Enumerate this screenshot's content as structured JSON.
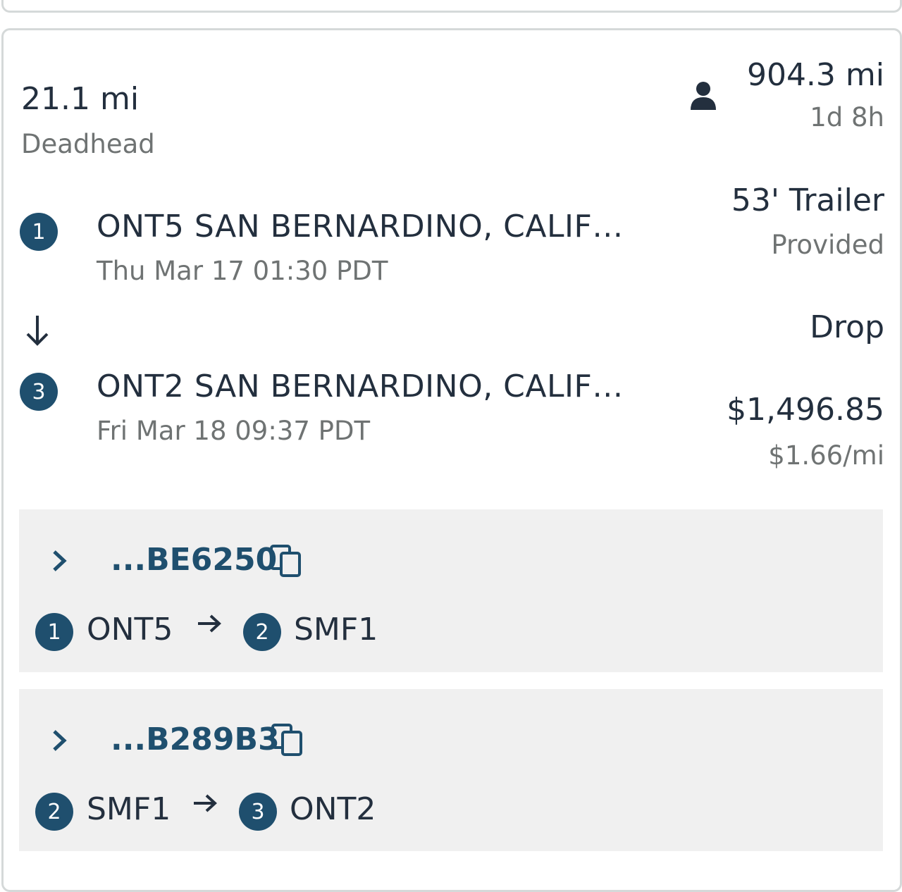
{
  "summary": {
    "deadhead_distance": "21.1 mi",
    "deadhead_label": "Deadhead",
    "total_distance": "904.3 mi",
    "duration": "1d 8h",
    "driver_icon": "person-icon"
  },
  "equipment": {
    "trailer": "53' Trailer",
    "trailer_status": "Provided",
    "mode": "Drop"
  },
  "pay": {
    "total": "$1,496.85",
    "rate": "$1.66/mi"
  },
  "stops": [
    {
      "number": "1",
      "address": "ONT5 SAN BERNARDINO, CALIF…",
      "time": "Thu Mar 17 01:30 PDT"
    },
    {
      "number": "3",
      "address": "ONT2 SAN BERNARDINO, CALIF…",
      "time": "Fri Mar 18 09:37 PDT"
    }
  ],
  "loads": [
    {
      "id": "...BE6250",
      "from_number": "1",
      "from": "ONT5",
      "to_number": "2",
      "to": "SMF1"
    },
    {
      "id": "...B289B3",
      "from_number": "2",
      "from": "SMF1",
      "to_number": "3",
      "to": "ONT2"
    }
  ],
  "colors": {
    "accent": "#1f4f6e",
    "text": "#232f3e",
    "muted": "#6f7373",
    "panel": "#f0f0f0"
  }
}
